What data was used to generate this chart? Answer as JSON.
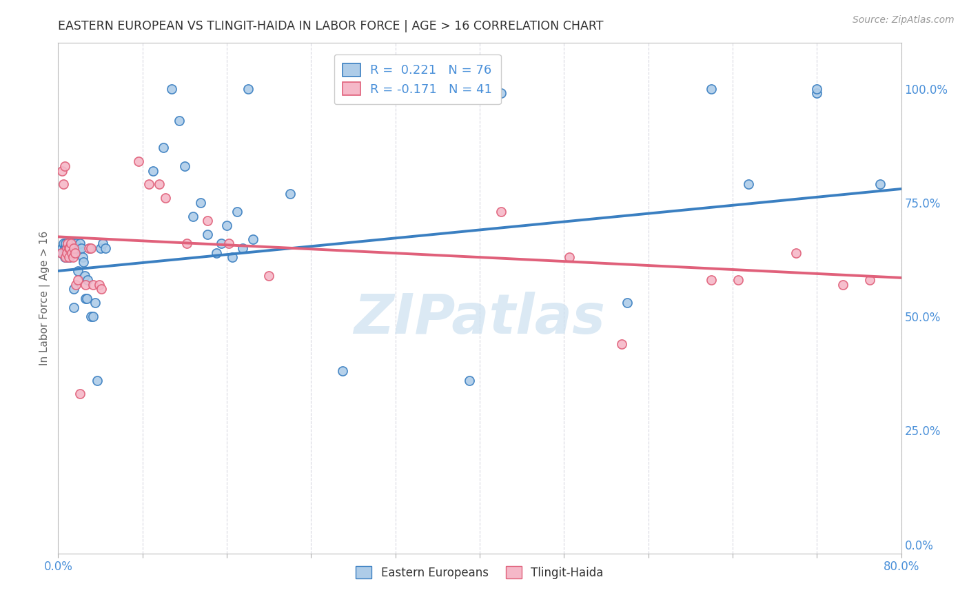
{
  "title": "EASTERN EUROPEAN VS TLINGIT-HAIDA IN LABOR FORCE | AGE > 16 CORRELATION CHART",
  "source_text": "Source: ZipAtlas.com",
  "ylabel": "In Labor Force | Age > 16",
  "xlim": [
    0.0,
    0.8
  ],
  "ylim": [
    -0.02,
    1.1
  ],
  "xticks": [
    0.0,
    0.08,
    0.16,
    0.24,
    0.32,
    0.4,
    0.48,
    0.56,
    0.64,
    0.72,
    0.8
  ],
  "yticks_right": [
    0.0,
    0.25,
    0.5,
    0.75,
    1.0
  ],
  "ytick_labels_right": [
    "0.0%",
    "25.0%",
    "50.0%",
    "75.0%",
    "100.0%"
  ],
  "blue_color": "#aecce8",
  "pink_color": "#f5b8c8",
  "blue_line_color": "#3a7fc1",
  "pink_line_color": "#e0607a",
  "legend_blue_label": "R =  0.221   N = 76",
  "legend_pink_label": "R = -0.171   N = 41",
  "background_color": "#ffffff",
  "grid_color": "#d8d8e0",
  "title_color": "#333333",
  "axis_label_color": "#4a90d9",
  "ylabel_color": "#666666",
  "watermark_text": "ZIPatlas",
  "watermark_color": "#cce0f0",
  "blue_x": [
    0.003,
    0.004,
    0.005,
    0.005,
    0.006,
    0.006,
    0.007,
    0.007,
    0.007,
    0.008,
    0.008,
    0.008,
    0.009,
    0.009,
    0.01,
    0.01,
    0.01,
    0.01,
    0.011,
    0.011,
    0.011,
    0.012,
    0.012,
    0.013,
    0.013,
    0.014,
    0.015,
    0.015,
    0.016,
    0.016,
    0.017,
    0.018,
    0.019,
    0.02,
    0.021,
    0.022,
    0.023,
    0.024,
    0.025,
    0.026,
    0.027,
    0.028,
    0.03,
    0.031,
    0.033,
    0.035,
    0.037,
    0.04,
    0.042,
    0.045,
    0.09,
    0.1,
    0.108,
    0.115,
    0.12,
    0.128,
    0.135,
    0.142,
    0.15,
    0.155,
    0.16,
    0.165,
    0.17,
    0.175,
    0.18,
    0.185,
    0.22,
    0.27,
    0.39,
    0.42,
    0.54,
    0.62,
    0.655,
    0.72,
    0.72,
    0.78
  ],
  "blue_y": [
    0.64,
    0.65,
    0.64,
    0.66,
    0.65,
    0.63,
    0.65,
    0.64,
    0.66,
    0.65,
    0.64,
    0.63,
    0.65,
    0.66,
    0.64,
    0.65,
    0.64,
    0.63,
    0.65,
    0.64,
    0.63,
    0.65,
    0.66,
    0.65,
    0.64,
    0.66,
    0.56,
    0.52,
    0.65,
    0.64,
    0.66,
    0.65,
    0.6,
    0.65,
    0.66,
    0.65,
    0.63,
    0.62,
    0.59,
    0.54,
    0.54,
    0.58,
    0.65,
    0.5,
    0.5,
    0.53,
    0.36,
    0.65,
    0.66,
    0.65,
    0.82,
    0.87,
    1.0,
    0.93,
    0.83,
    0.72,
    0.75,
    0.68,
    0.64,
    0.66,
    0.7,
    0.63,
    0.73,
    0.65,
    1.0,
    0.67,
    0.77,
    0.38,
    0.36,
    0.99,
    0.53,
    1.0,
    0.79,
    0.99,
    1.0,
    0.79
  ],
  "pink_x": [
    0.003,
    0.004,
    0.005,
    0.006,
    0.007,
    0.008,
    0.008,
    0.009,
    0.01,
    0.01,
    0.011,
    0.012,
    0.013,
    0.014,
    0.015,
    0.016,
    0.017,
    0.019,
    0.021,
    0.026,
    0.029,
    0.031,
    0.033,
    0.039,
    0.041,
    0.076,
    0.086,
    0.096,
    0.102,
    0.122,
    0.142,
    0.162,
    0.2,
    0.42,
    0.485,
    0.535,
    0.62,
    0.645,
    0.7,
    0.745,
    0.77
  ],
  "pink_y": [
    0.64,
    0.82,
    0.79,
    0.83,
    0.63,
    0.65,
    0.64,
    0.66,
    0.65,
    0.63,
    0.65,
    0.66,
    0.64,
    0.63,
    0.65,
    0.64,
    0.57,
    0.58,
    0.33,
    0.57,
    0.65,
    0.65,
    0.57,
    0.57,
    0.56,
    0.84,
    0.79,
    0.79,
    0.76,
    0.66,
    0.71,
    0.66,
    0.59,
    0.73,
    0.63,
    0.44,
    0.58,
    0.58,
    0.64,
    0.57,
    0.58
  ]
}
